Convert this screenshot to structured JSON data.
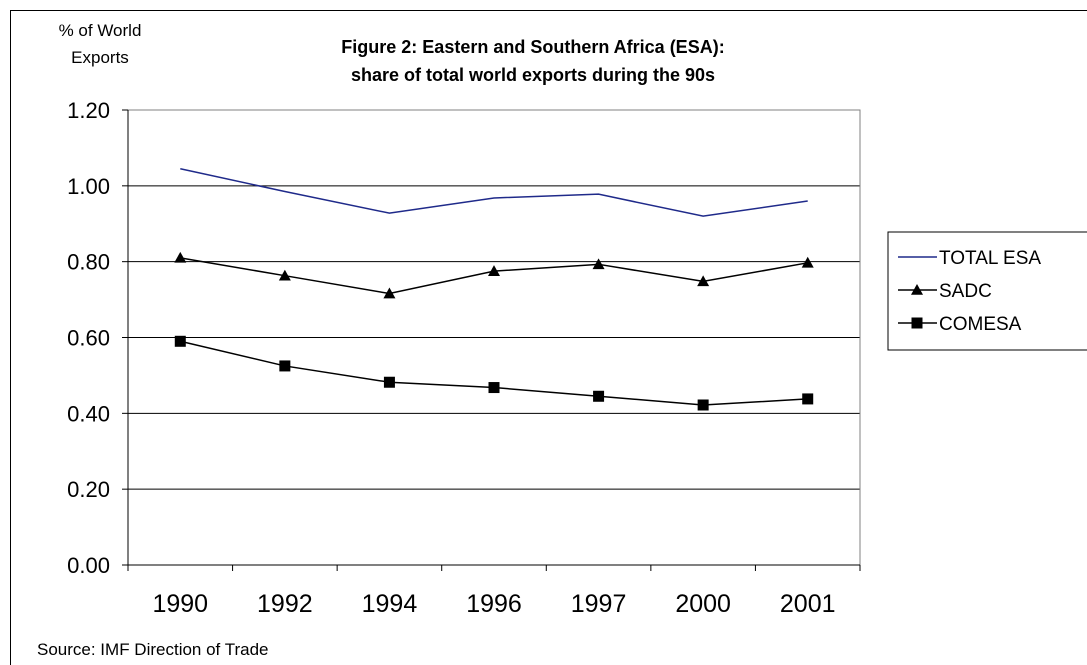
{
  "chart_data": {
    "type": "line",
    "title": [
      "Figure 2: Eastern and Southern Africa (ESA):",
      "share of total world exports during the 90s"
    ],
    "ylabel": [
      "% of World",
      "Exports"
    ],
    "xlabel": "",
    "categories": [
      "1990",
      "1992",
      "1994",
      "1996",
      "1997",
      "2000",
      "2001"
    ],
    "ylim": [
      0,
      1.2
    ],
    "yticks": [
      "0.00",
      "0.20",
      "0.40",
      "0.60",
      "0.80",
      "1.00",
      "1.20"
    ],
    "grid": true,
    "legend_position": "right",
    "series": [
      {
        "name": "TOTAL ESA",
        "values": [
          1.045,
          0.985,
          0.928,
          0.968,
          0.978,
          0.92,
          0.96
        ],
        "color": "#1f2a8a",
        "marker": "none"
      },
      {
        "name": "SADC",
        "values": [
          0.81,
          0.763,
          0.716,
          0.775,
          0.793,
          0.748,
          0.797
        ],
        "color": "#000000",
        "marker": "triangle"
      },
      {
        "name": "COMESA",
        "values": [
          0.59,
          0.525,
          0.482,
          0.468,
          0.445,
          0.422,
          0.438
        ],
        "color": "#000000",
        "marker": "square"
      }
    ],
    "source": "Source: IMF Direction of Trade"
  }
}
